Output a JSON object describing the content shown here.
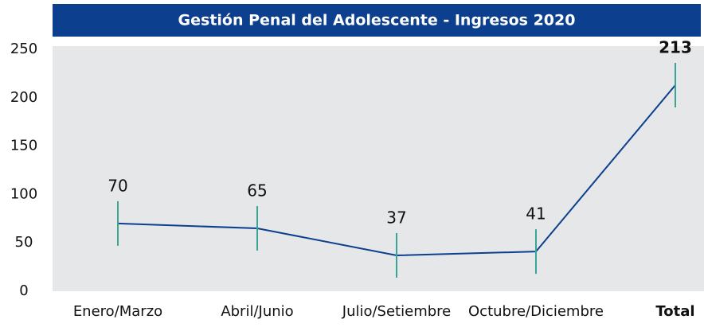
{
  "chart_data": {
    "type": "line",
    "title": "Gestión Penal del Adolescente - Ingresos 2020",
    "categories": [
      "Enero/Marzo",
      "Abril/Junio",
      "Julio/Setiembre",
      "Octubre/Diciembre",
      "Total"
    ],
    "series": [
      {
        "name": "Ingresos",
        "color": "#0d3f8f",
        "values": [
          70,
          65,
          37,
          41,
          213
        ]
      }
    ],
    "marker_color": "#3aa597",
    "ylim": [
      0,
      250
    ],
    "yticks": [
      0,
      50,
      100,
      150,
      200,
      250
    ],
    "grid": false
  }
}
